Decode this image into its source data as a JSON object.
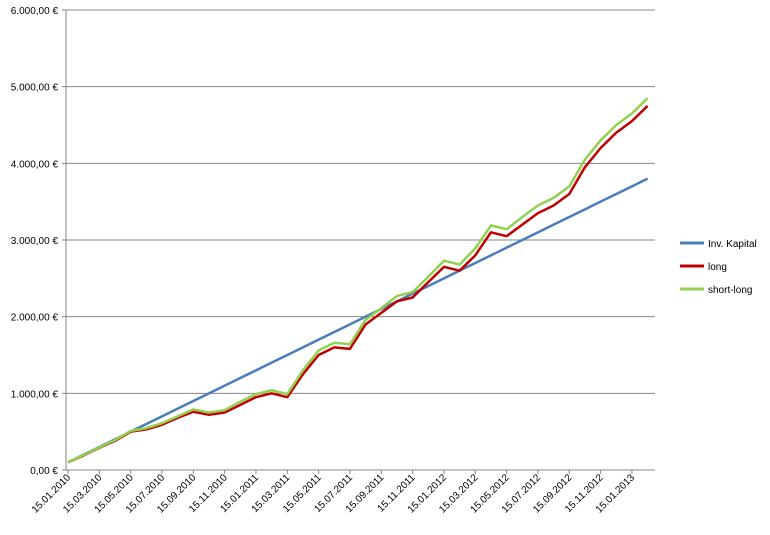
{
  "chart_data": {
    "type": "line",
    "categories": [
      "15.01.2010",
      null,
      "15.03.2010",
      null,
      "15.05.2010",
      null,
      "15.07.2010",
      null,
      "15.09.2010",
      null,
      "15.11.2010",
      null,
      "15.01.2011",
      null,
      "15.03.2011",
      null,
      "15.05.2011",
      null,
      "15.07.2011",
      null,
      "15.09.2011",
      null,
      "15.11.2011",
      null,
      "15.01.2012",
      null,
      "15.03.2012",
      null,
      "15.05.2012",
      null,
      "15.07.2012",
      null,
      "15.09.2012",
      null,
      "15.11.2012",
      null,
      "15.01.2013",
      null
    ],
    "series": [
      {
        "name": "Inv. Kapital",
        "color": "#4a7ebb",
        "values": [
          100,
          200,
          300,
          400,
          500,
          600,
          700,
          800,
          900,
          1000,
          1100,
          1200,
          1300,
          1400,
          1500,
          1600,
          1700,
          1800,
          1900,
          2000,
          2100,
          2200,
          2300,
          2400,
          2500,
          2600,
          2700,
          2800,
          2900,
          3000,
          3100,
          3200,
          3300,
          3400,
          3500,
          3600,
          3700,
          3800
        ]
      },
      {
        "name": "long",
        "color": "#c00000",
        "values": [
          100,
          190,
          290,
          380,
          500,
          530,
          590,
          680,
          760,
          720,
          750,
          850,
          950,
          1000,
          950,
          1250,
          1500,
          1600,
          1580,
          1900,
          2050,
          2200,
          2250,
          2450,
          2650,
          2600,
          2800,
          3100,
          3050,
          3200,
          3350,
          3450,
          3600,
          3950,
          4200,
          4400,
          4550,
          4750
        ]
      },
      {
        "name": "short-long",
        "color": "#92d050",
        "values": [
          100,
          195,
          295,
          390,
          510,
          545,
          610,
          700,
          790,
          750,
          780,
          890,
          990,
          1040,
          990,
          1300,
          1560,
          1660,
          1640,
          1960,
          2110,
          2270,
          2320,
          2520,
          2730,
          2680,
          2890,
          3190,
          3140,
          3300,
          3450,
          3550,
          3700,
          4050,
          4300,
          4500,
          4650,
          4850
        ]
      }
    ],
    "ylim": [
      0,
      6000
    ],
    "yticks": [
      {
        "value": 0,
        "label": "0,00 €"
      },
      {
        "value": 1000,
        "label": "1.000,00 €"
      },
      {
        "value": 2000,
        "label": "2.000,00 €"
      },
      {
        "value": 3000,
        "label": "3.000,00 €"
      },
      {
        "value": 4000,
        "label": "4.000,00 €"
      },
      {
        "value": 5000,
        "label": "5.000,00 €"
      },
      {
        "value": 6000,
        "label": "6.000,00 €"
      }
    ],
    "grid": true,
    "legend": "right"
  }
}
